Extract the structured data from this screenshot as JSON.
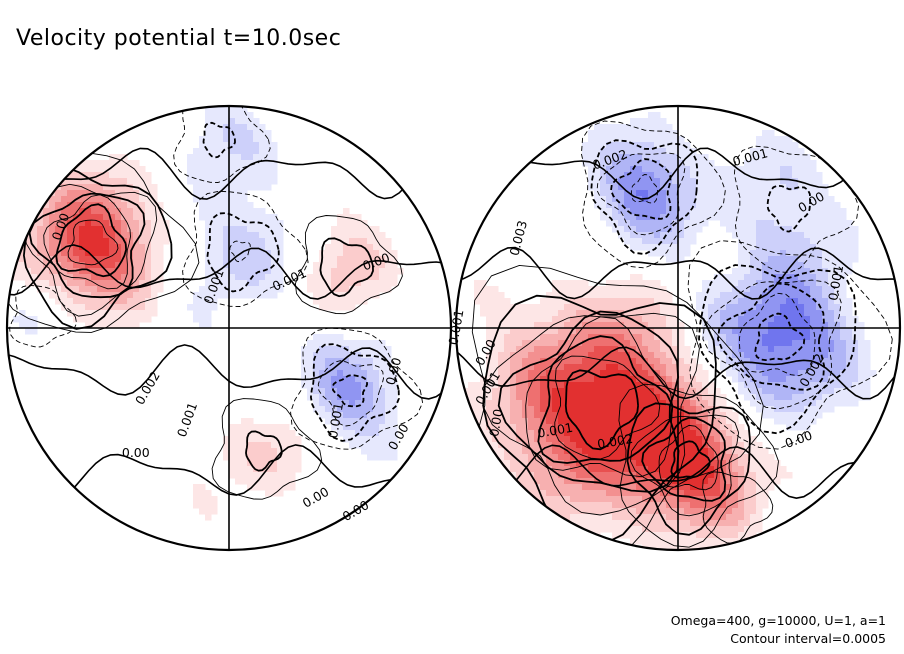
{
  "chart_data": {
    "type": "contour",
    "title": "Velocity potential t=10.0sec",
    "projection": "orthographic hemispheres (two discs)",
    "colors": {
      "positive": "#e8202a",
      "negative": "#3030e0",
      "contour": "#000000"
    },
    "footer": {
      "params": "Omega=400, g=10000, U=1, a=1",
      "interval": "Contour interval=0.0005"
    },
    "hemispheres": [
      {
        "name": "left",
        "labels": [
          "0.00",
          "0.001",
          "0.00",
          "0.001",
          "0.00",
          "0.002",
          "0.001",
          "0.00",
          "0.001",
          "0.00",
          "0.00",
          "0.00"
        ],
        "features": [
          {
            "sign": 1,
            "lon": -0.62,
            "lat": -0.38,
            "amp": 0.0036,
            "r": 0.28
          },
          {
            "sign": 1,
            "lon": 0.52,
            "lat": -0.28,
            "amp": 0.0012,
            "r": 0.22
          },
          {
            "sign": 1,
            "lon": 0.15,
            "lat": 0.55,
            "amp": 0.001,
            "r": 0.25
          },
          {
            "sign": -1,
            "lon": 0.55,
            "lat": 0.28,
            "amp": 0.002,
            "r": 0.22
          },
          {
            "sign": -1,
            "lon": 0.05,
            "lat": -0.35,
            "amp": 0.0014,
            "r": 0.24
          },
          {
            "sign": -1,
            "lon": -0.85,
            "lat": -0.05,
            "amp": 0.0008,
            "r": 0.18
          },
          {
            "sign": -1,
            "lon": -0.05,
            "lat": -0.85,
            "amp": 0.001,
            "r": 0.22
          }
        ]
      },
      {
        "name": "right",
        "labels": [
          "0.002",
          "0.001",
          "0.00",
          "0.003",
          "0.001",
          "0.00",
          "0.001",
          "0.002",
          "0.001",
          "0.002",
          "0.00",
          "0.001",
          "0.00"
        ],
        "features": [
          {
            "sign": 1,
            "lon": -0.35,
            "lat": 0.35,
            "amp": 0.0042,
            "r": 0.42
          },
          {
            "sign": 1,
            "lon": 0.05,
            "lat": 0.6,
            "amp": 0.003,
            "r": 0.25
          },
          {
            "sign": 1,
            "lon": 0.25,
            "lat": 0.8,
            "amp": 0.0008,
            "r": 0.2
          },
          {
            "sign": -1,
            "lon": 0.45,
            "lat": 0.05,
            "amp": 0.003,
            "r": 0.32
          },
          {
            "sign": -1,
            "lon": -0.15,
            "lat": -0.62,
            "amp": 0.0024,
            "r": 0.24
          },
          {
            "sign": -1,
            "lon": 0.5,
            "lat": -0.55,
            "amp": 0.001,
            "r": 0.3
          }
        ]
      }
    ]
  }
}
